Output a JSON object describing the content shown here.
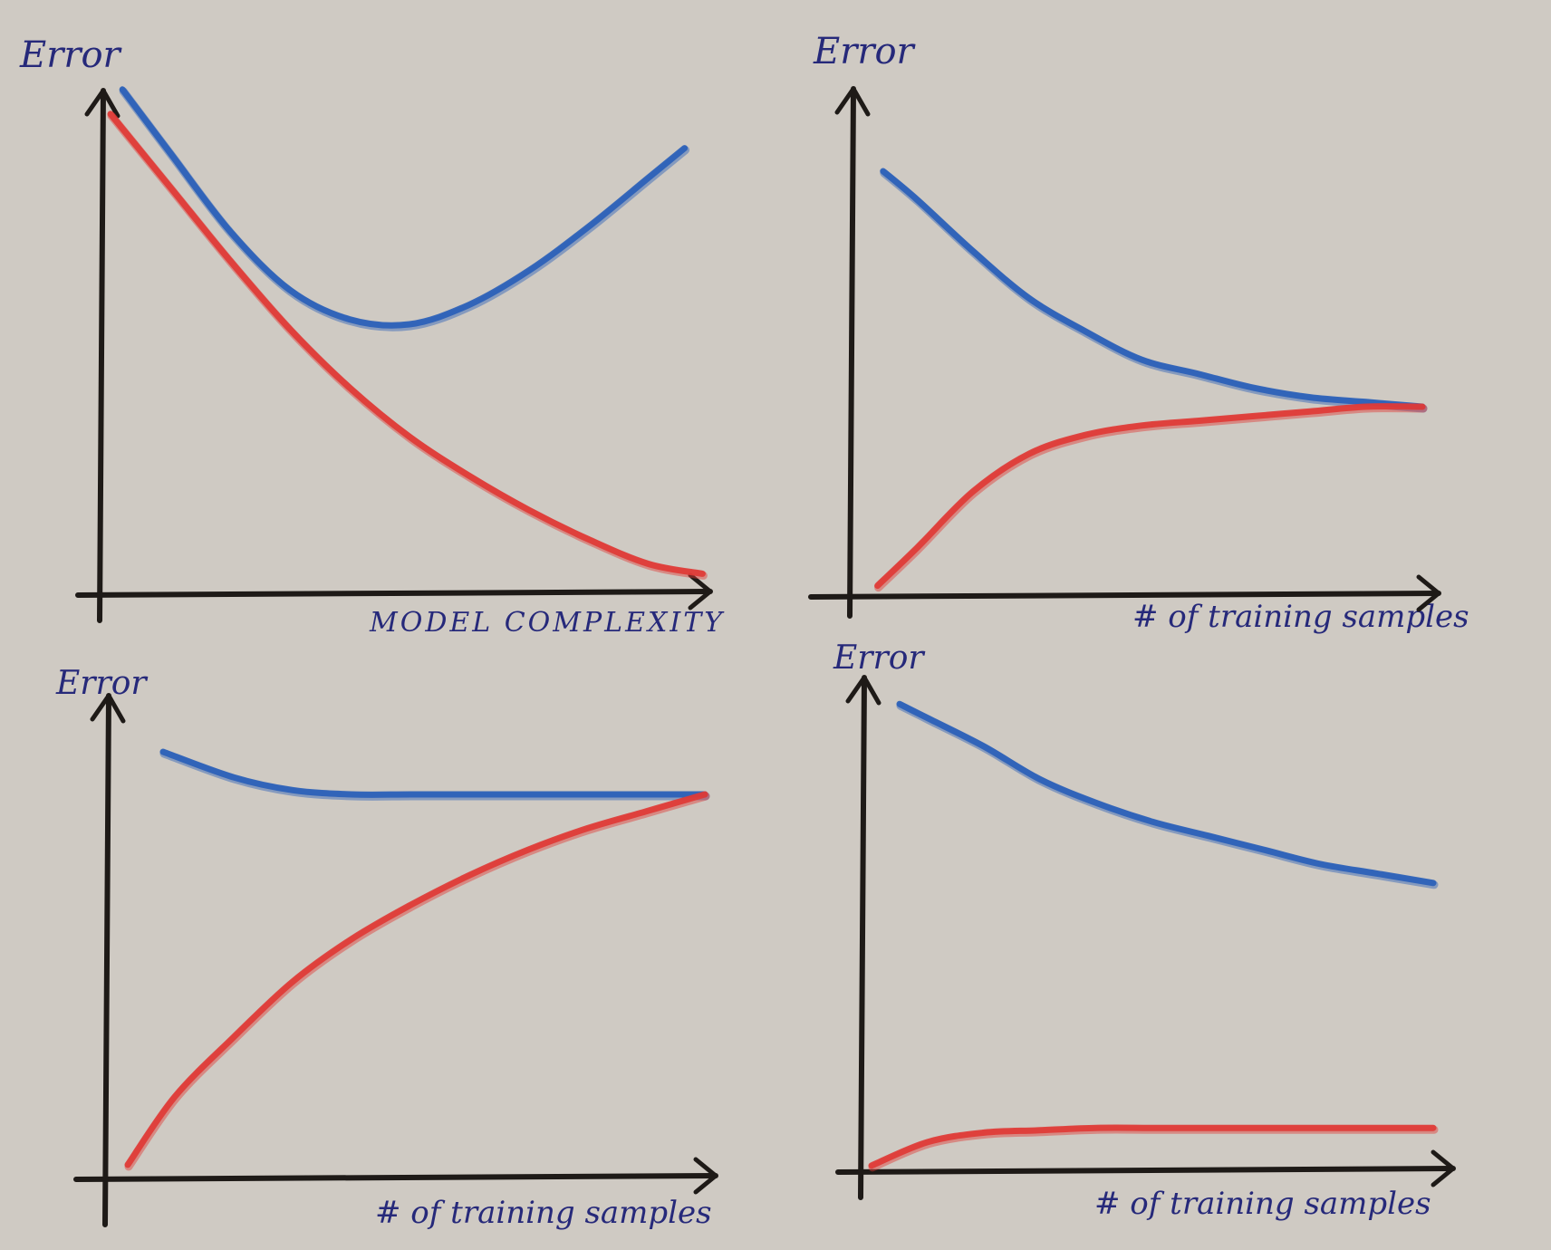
{
  "colors": {
    "paper": "#cfcac3",
    "axis": "#1e1a17",
    "ink": "#26297a",
    "blue": "#2a5fb8",
    "red": "#e03a36"
  },
  "chart_data": [
    {
      "type": "line",
      "ylabel": "Error",
      "xlabel": "MODEL COMPLEXITY",
      "xlim": [
        0,
        10
      ],
      "ylim": [
        0,
        10
      ],
      "grid": false,
      "series": [
        {
          "color": "blue",
          "x": [
            0.2,
            1,
            2,
            3,
            4,
            5,
            6,
            7,
            8,
            9,
            9.6
          ],
          "y": [
            10.3,
            9.0,
            7.4,
            6.2,
            5.6,
            5.5,
            5.9,
            6.6,
            7.5,
            8.5,
            9.1
          ]
        },
        {
          "color": "red",
          "x": [
            0,
            1,
            2,
            3,
            4,
            5,
            6,
            7,
            8,
            9,
            9.9
          ],
          "y": [
            9.8,
            8.3,
            6.8,
            5.4,
            4.2,
            3.2,
            2.4,
            1.7,
            1.1,
            0.6,
            0.4
          ]
        }
      ]
    },
    {
      "type": "line",
      "ylabel": "Error",
      "xlabel": "# of training samples",
      "xlim": [
        0,
        10
      ],
      "ylim": [
        0,
        10
      ],
      "grid": false,
      "series": [
        {
          "color": "blue",
          "x": [
            0.4,
            1,
            2,
            3,
            4,
            5,
            6,
            7,
            8,
            9,
            10
          ],
          "y": [
            9.0,
            8.4,
            7.3,
            6.3,
            5.6,
            5.0,
            4.7,
            4.4,
            4.2,
            4.1,
            4.0
          ]
        },
        {
          "color": "red",
          "x": [
            0.3,
            1,
            2,
            3,
            4,
            5,
            6,
            7,
            8,
            9,
            10
          ],
          "y": [
            0.2,
            1.0,
            2.2,
            3.0,
            3.4,
            3.6,
            3.7,
            3.8,
            3.9,
            4.0,
            4.0
          ]
        }
      ]
    },
    {
      "type": "line",
      "ylabel": "Error",
      "xlabel": "# of training samples",
      "xlim": [
        0,
        10
      ],
      "ylim": [
        0,
        10
      ],
      "grid": false,
      "series": [
        {
          "color": "blue",
          "x": [
            0.8,
            2,
            3,
            4,
            5,
            6,
            7,
            8,
            9,
            10
          ],
          "y": [
            10.0,
            9.4,
            9.1,
            9.0,
            9.0,
            9.0,
            9.0,
            9.0,
            9.0,
            9.0
          ]
        },
        {
          "color": "red",
          "x": [
            0.2,
            1,
            2,
            3,
            4,
            5,
            6,
            7,
            8,
            9,
            10
          ],
          "y": [
            0.3,
            1.9,
            3.3,
            4.6,
            5.6,
            6.4,
            7.1,
            7.7,
            8.2,
            8.6,
            9.0
          ]
        }
      ]
    },
    {
      "type": "line",
      "ylabel": "Error",
      "xlabel": "# of training samples",
      "xlim": [
        0,
        10
      ],
      "ylim": [
        0,
        10
      ],
      "grid": false,
      "series": [
        {
          "color": "blue",
          "x": [
            0.5,
            1,
            2,
            3,
            4,
            5,
            6,
            7,
            8,
            9,
            10
          ],
          "y": [
            9.9,
            9.6,
            9.0,
            8.3,
            7.8,
            7.4,
            7.1,
            6.8,
            6.5,
            6.3,
            6.1
          ]
        },
        {
          "color": "red",
          "x": [
            0,
            1,
            2,
            3,
            4,
            5,
            6,
            7,
            8,
            9,
            10
          ],
          "y": [
            0.1,
            0.6,
            0.8,
            0.85,
            0.9,
            0.9,
            0.9,
            0.9,
            0.9,
            0.9,
            0.9
          ]
        }
      ]
    }
  ]
}
